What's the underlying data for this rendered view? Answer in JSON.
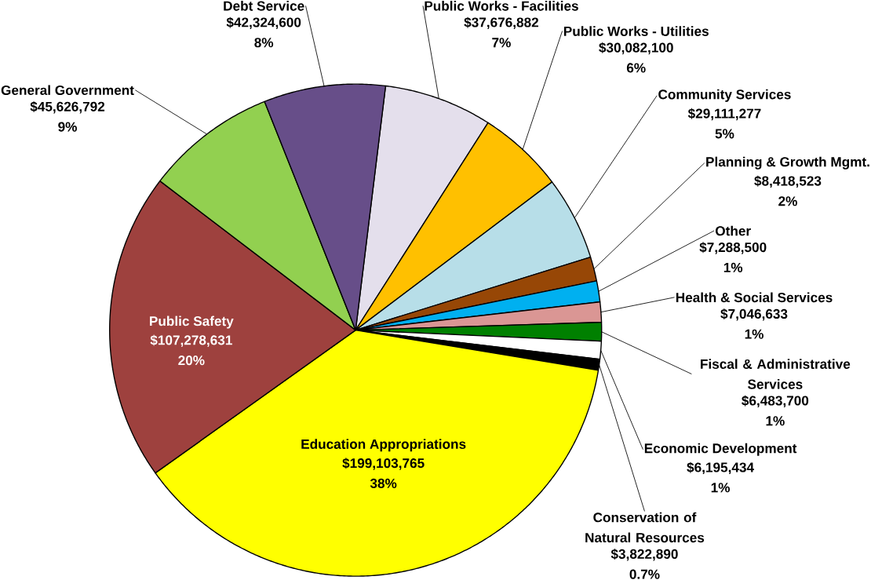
{
  "chart_data": {
    "type": "pie",
    "categories": [
      "Public Works - Facilities",
      "Public Works - Utilities",
      "Community Services",
      "Planning & Growth Mgmt.",
      "Other",
      "Health & Social Services",
      "Fiscal & Administrative Services",
      "Economic Development",
      "Conservation of Natural Resources",
      "Education Appropriations",
      "Public Safety",
      "General Government",
      "Debt Service"
    ],
    "values": [
      37676882,
      30082100,
      29111277,
      8418523,
      7288500,
      7046633,
      6483700,
      6195434,
      3822890,
      199103765,
      107278631,
      45626792,
      42324600
    ],
    "colors": [
      "#e4dfec",
      "#ffc000",
      "#b7dee8",
      "#974706",
      "#00b0f0",
      "#da9694",
      "#008000",
      "#ffffff",
      "#000000",
      "#ffff00",
      "#9e413e",
      "#92d050",
      "#674e89"
    ],
    "value_labels": [
      "$37,676,882",
      "$30,082,100",
      "$29,111,277",
      "$8,418,523",
      "$7,288,500",
      "$7,046,633",
      "$6,483,700",
      "$6,195,434",
      "$3,822,890",
      "$199,103,765",
      "$107,278,631",
      "$45,626,792",
      "$42,324,600"
    ],
    "annotations": [
      {
        "text": "7%",
        "x": "Public Works - Facilities"
      },
      {
        "text": "6%",
        "x": "Public Works - Utilities"
      },
      {
        "text": "5%",
        "x": "Community Services"
      },
      {
        "text": "2%",
        "x": "Planning & Growth Mgmt."
      },
      {
        "text": "1%",
        "x": "Other"
      },
      {
        "text": "1%",
        "x": "Health & Social Services"
      },
      {
        "text": "1%",
        "x": "Fiscal & Administrative Services"
      },
      {
        "text": "1%",
        "x": "Economic Development"
      },
      {
        "text": "0.7%",
        "x": "Conservation of Natural Resources"
      },
      {
        "text": "38%",
        "x": "Education Appropriations"
      },
      {
        "text": "20%",
        "x": "Public Safety"
      },
      {
        "text": "9%",
        "x": "General Government"
      },
      {
        "text": "8%",
        "x": "Debt Service"
      }
    ]
  }
}
